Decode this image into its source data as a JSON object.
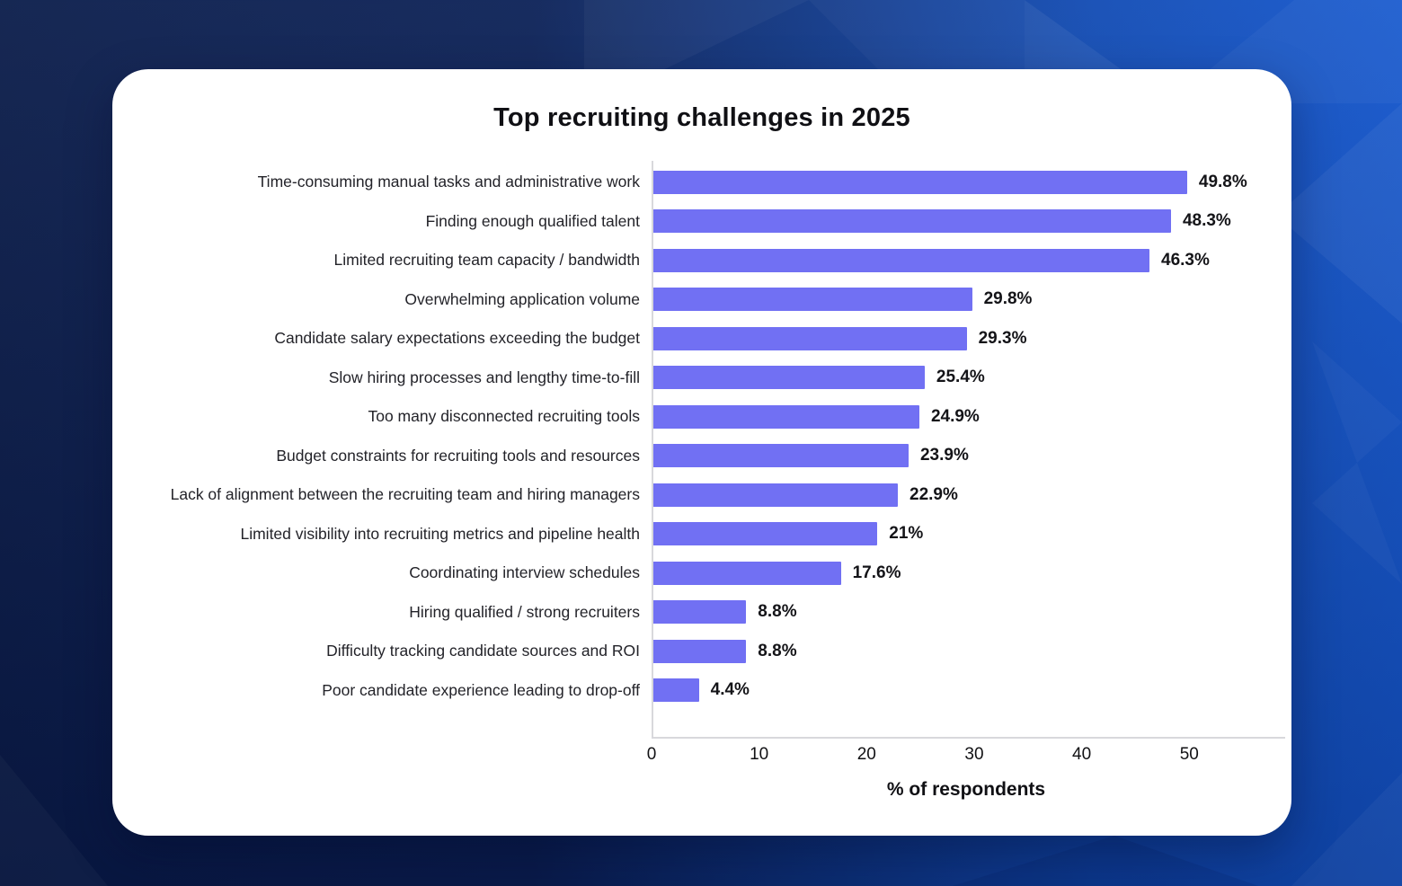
{
  "title": "Top recruiting challenges in 2025",
  "chart_data": {
    "type": "bar",
    "orientation": "horizontal",
    "title": "Top recruiting challenges in 2025",
    "xlabel": "% of respondents",
    "ylabel": "",
    "x_ticks": [
      0,
      10,
      20,
      30,
      40,
      50
    ],
    "xlim": [
      0,
      58.5
    ],
    "grid": false,
    "legend": false,
    "categories": [
      "Time-consuming manual tasks and administrative work",
      "Finding enough qualified talent",
      "Limited recruiting team capacity / bandwidth",
      "Overwhelming application volume",
      "Candidate salary expectations exceeding the budget",
      "Slow hiring processes and lengthy time-to-fill",
      "Too many disconnected recruiting tools",
      "Budget constraints for recruiting tools and resources",
      "Lack of alignment between the recruiting team and hiring managers",
      "Limited visibility into recruiting metrics and pipeline health",
      "Coordinating interview schedules",
      "Hiring qualified / strong recruiters",
      "Difficulty tracking candidate sources and ROI",
      "Poor candidate experience leading to drop-off"
    ],
    "values": [
      49.8,
      48.3,
      46.3,
      29.8,
      29.3,
      25.4,
      24.9,
      23.9,
      22.9,
      21,
      17.6,
      8.8,
      8.8,
      4.4
    ],
    "value_labels": [
      "49.8%",
      "48.3%",
      "46.3%",
      "29.8%",
      "29.3%",
      "25.4%",
      "24.9%",
      "23.9%",
      "22.9%",
      "21%",
      "17.6%",
      "8.8%",
      "8.8%",
      "4.4%"
    ]
  },
  "colors": {
    "bar": "#7170F3",
    "card_background": "#FFFFFF",
    "axis_line": "#D8D8DC",
    "background_dark": "#0A1C4A",
    "background_bright": "#1356CE",
    "title_text": "#101014",
    "label_text": "#232329"
  }
}
